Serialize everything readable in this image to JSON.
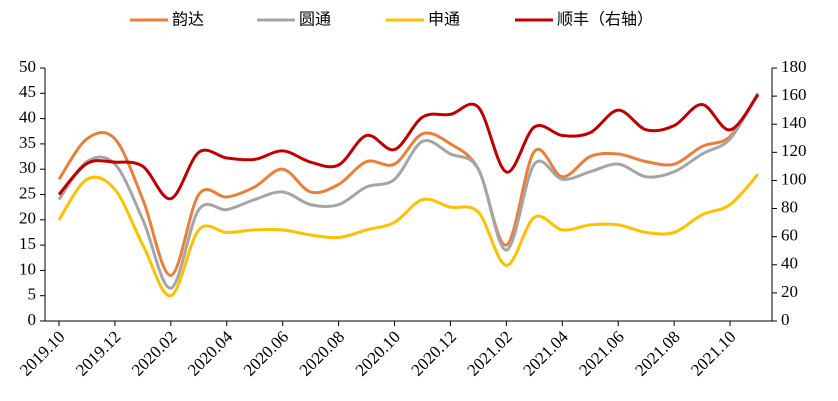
{
  "chart_data": {
    "type": "line",
    "categories": [
      "2019.10",
      null,
      "2019.12",
      null,
      "2020.02",
      null,
      "2020.04",
      null,
      "2020.06",
      null,
      "2020.08",
      null,
      "2020.10",
      null,
      "2020.12",
      null,
      "2021.02",
      null,
      "2021.04",
      null,
      "2021.06",
      null,
      "2021.08",
      null,
      "2021.10",
      null
    ],
    "series": [
      {
        "name": "韵达",
        "color": "#e97f3a",
        "values": [
          28,
          36,
          36,
          24,
          9,
          25,
          24.5,
          26.5,
          30,
          25.5,
          27,
          31.5,
          31,
          37,
          35,
          30,
          15,
          33.5,
          28.5,
          32.5,
          33,
          31.5,
          31,
          34.5,
          36.5,
          45
        ]
      },
      {
        "name": "圆通",
        "color": "#a5a5a5",
        "values": [
          24,
          31.5,
          31,
          20,
          6.5,
          22,
          22,
          24,
          25.5,
          23,
          23,
          26.5,
          28,
          35.5,
          33,
          30,
          14,
          31,
          28,
          29.5,
          31,
          28.5,
          29.5,
          33,
          36,
          45
        ]
      },
      {
        "name": "申通",
        "color": "#ffc000",
        "values": [
          20,
          28,
          26,
          15,
          5,
          18,
          17.5,
          18,
          18,
          17,
          16.5,
          18,
          19.5,
          24,
          22.5,
          21.5,
          11,
          20.5,
          18,
          19,
          19,
          17.5,
          17.5,
          21,
          23,
          29
        ]
      },
      {
        "name": "顺丰（右轴）",
        "color": "#c00000",
        "axis": "y2",
        "values": [
          90,
          112,
          113,
          110,
          87,
          120,
          116,
          115,
          121,
          113,
          111,
          132,
          122,
          145,
          147,
          152,
          106,
          138,
          132,
          134,
          150,
          136,
          139,
          154,
          136,
          161
        ]
      }
    ],
    "ylim": [
      0,
      50
    ],
    "yticks": [
      0,
      5,
      10,
      15,
      20,
      25,
      30,
      35,
      40,
      45,
      50
    ],
    "y2lim": [
      0,
      180
    ],
    "y2ticks": [
      0,
      20,
      40,
      60,
      80,
      100,
      120,
      140,
      160,
      180
    ],
    "legend": "top"
  }
}
